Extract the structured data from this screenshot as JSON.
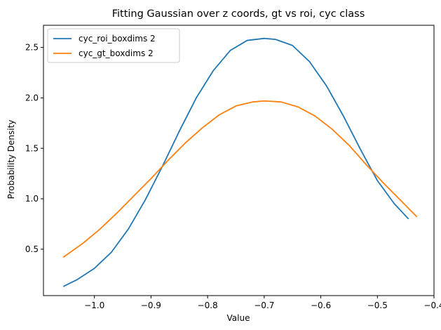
{
  "chart_data": {
    "type": "line",
    "title": "Fitting Gaussian over z coords, gt vs roi, cyc class",
    "xlabel": "Value",
    "ylabel": "Probability Density",
    "xlim": [
      -1.09,
      -0.4
    ],
    "ylim": [
      0.04,
      2.72
    ],
    "xticks": [
      -1.0,
      -0.9,
      -0.8,
      -0.7,
      -0.6,
      -0.5,
      -0.4
    ],
    "xtick_labels": [
      "−1.0",
      "−0.9",
      "−0.8",
      "−0.7",
      "−0.6",
      "−0.5",
      "−0.4"
    ],
    "yticks": [
      0.5,
      1.0,
      1.5,
      2.0,
      2.5
    ],
    "ytick_labels": [
      "0.5",
      "1.0",
      "1.5",
      "2.0",
      "2.5"
    ],
    "grid": false,
    "legend_position": "top-left",
    "series": [
      {
        "name": "cyc_roi_boxdims 2",
        "color": "#1f77b4",
        "x": [
          -1.055,
          -1.03,
          -1.0,
          -0.97,
          -0.94,
          -0.91,
          -0.88,
          -0.85,
          -0.82,
          -0.79,
          -0.76,
          -0.73,
          -0.7,
          -0.68,
          -0.65,
          -0.62,
          -0.59,
          -0.56,
          -0.53,
          -0.5,
          -0.47,
          -0.445
        ],
        "y": [
          0.13,
          0.2,
          0.31,
          0.47,
          0.7,
          0.99,
          1.32,
          1.67,
          2.0,
          2.27,
          2.47,
          2.57,
          2.59,
          2.58,
          2.52,
          2.36,
          2.12,
          1.82,
          1.49,
          1.18,
          0.95,
          0.8
        ]
      },
      {
        "name": "cyc_gt_boxdims 2",
        "color": "#ff7f0e",
        "x": [
          -1.055,
          -1.02,
          -0.99,
          -0.96,
          -0.93,
          -0.9,
          -0.87,
          -0.84,
          -0.81,
          -0.78,
          -0.75,
          -0.72,
          -0.7,
          -0.67,
          -0.64,
          -0.61,
          -0.58,
          -0.55,
          -0.52,
          -0.49,
          -0.46,
          -0.43
        ],
        "y": [
          0.42,
          0.56,
          0.7,
          0.86,
          1.03,
          1.2,
          1.38,
          1.55,
          1.7,
          1.83,
          1.92,
          1.96,
          1.97,
          1.96,
          1.91,
          1.82,
          1.69,
          1.53,
          1.34,
          1.16,
          0.99,
          0.82
        ]
      }
    ]
  }
}
